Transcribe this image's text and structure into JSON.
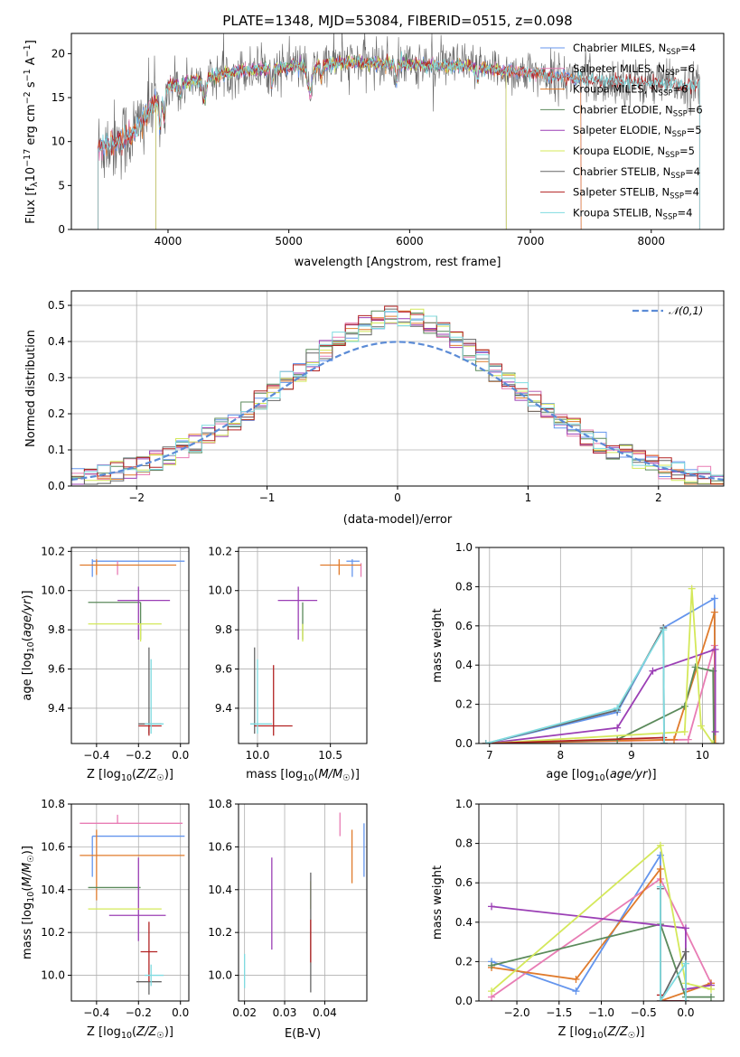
{
  "figure_title": "PLATE=1348, MJD=53084, FIBERID=0515, z=0.098",
  "colors": {
    "Chabrier MILES": "#6495ed",
    "Salpeter MILES": "#e87cb4",
    "Kroupa MILES": "#e07b2c",
    "Chabrier ELODIE": "#5b8a5b",
    "Salpeter ELODIE": "#9b3fb5",
    "Kroupa ELODIE": "#d4e85a",
    "Chabrier STELIB": "#666666",
    "Salpeter STELIB": "#b22222",
    "Kroupa STELIB": "#7fdbe0"
  },
  "chart_data": [
    {
      "id": "spectrum",
      "type": "line",
      "title": "PLATE=1348, MJD=53084, FIBERID=0515, z=0.098",
      "xlabel": "wavelength [Angstrom, rest frame]",
      "ylabel": "Flux [f_λ 10^-17 erg cm^-2 s^-1 A^-1]",
      "xlim": [
        3200,
        8600
      ],
      "ylim": [
        0,
        22.3
      ],
      "xticks": [
        4000,
        5000,
        6000,
        7000,
        8000
      ],
      "yticks": [
        0,
        5,
        10,
        15,
        20
      ],
      "grid": false,
      "legend_position": "right",
      "series": [
        {
          "name": "Chabrier MILES",
          "nssp": "4",
          "range": [
            3420,
            7420
          ]
        },
        {
          "name": "Salpeter MILES",
          "nssp": "6",
          "range": [
            3420,
            7420
          ]
        },
        {
          "name": "Kroupa MILES",
          "nssp": "6",
          "range": [
            3420,
            7420
          ]
        },
        {
          "name": "Chabrier ELODIE",
          "nssp": "6",
          "range": [
            3900,
            6800
          ]
        },
        {
          "name": "Salpeter ELODIE",
          "nssp": "5",
          "range": [
            3900,
            6800
          ]
        },
        {
          "name": "Kroupa ELODIE",
          "nssp": "5",
          "range": [
            3900,
            6800
          ]
        },
        {
          "name": "Chabrier STELIB",
          "nssp": "4",
          "range": [
            3420,
            8400
          ]
        },
        {
          "name": "Salpeter STELIB",
          "nssp": "4",
          "range": [
            3420,
            8400
          ]
        },
        {
          "name": "Kroupa STELIB",
          "nssp": "4",
          "range": [
            3420,
            8400
          ]
        }
      ]
    },
    {
      "id": "residuals",
      "type": "histogram",
      "xlabel": "(data-model)/error",
      "ylabel": "Normed distribution",
      "xlim": [
        -2.5,
        2.5
      ],
      "ylim": [
        0,
        0.54
      ],
      "xticks": [
        -2,
        -1,
        0,
        1,
        2
      ],
      "yticks": [
        0.0,
        0.1,
        0.2,
        0.3,
        0.4,
        0.5
      ],
      "grid": true,
      "legend_position": "top-right",
      "reference": {
        "name": "𝒩(0,1)",
        "mean": 0,
        "sigma": 1
      }
    },
    {
      "id": "age-z",
      "type": "errorbar",
      "xlabel": "Z [log10(Z/Z☉)]",
      "ylabel": "age  [log10(age/yr)]",
      "xlim": [
        -0.52,
        0.04
      ],
      "ylim": [
        9.22,
        10.22
      ],
      "xticks": [
        -0.4,
        -0.2,
        0.0
      ],
      "yticks": [
        9.4,
        9.6,
        9.8,
        10.0,
        10.2
      ],
      "grid": true,
      "points": [
        {
          "name": "Chabrier MILES",
          "x": -0.42,
          "xerr": [
            0.0,
            0.44
          ],
          "y": 10.15,
          "yerr": [
            0.08,
            0.01
          ]
        },
        {
          "name": "Salpeter MILES",
          "x": -0.3,
          "xerr": [
            0.0,
            0.0
          ],
          "y": 10.15,
          "yerr": [
            0.07,
            0.0
          ]
        },
        {
          "name": "Kroupa MILES",
          "x": -0.4,
          "xerr": [
            0.08,
            0.38
          ],
          "y": 10.13,
          "yerr": [
            0.05,
            0.03
          ]
        },
        {
          "name": "Chabrier ELODIE",
          "x": -0.19,
          "xerr": [
            0.25,
            0.0
          ],
          "y": 9.94,
          "yerr": [
            0.19,
            0.0
          ]
        },
        {
          "name": "Salpeter ELODIE",
          "x": -0.2,
          "xerr": [
            0.1,
            0.15
          ],
          "y": 9.95,
          "yerr": [
            0.2,
            0.07
          ]
        },
        {
          "name": "Kroupa ELODIE",
          "x": -0.19,
          "xerr": [
            0.25,
            0.1
          ],
          "y": 9.83,
          "yerr": [
            0.09,
            0.0
          ]
        },
        {
          "name": "Chabrier STELIB",
          "x": -0.15,
          "xerr": [
            0.05,
            0.06
          ],
          "y": 9.32,
          "yerr": [
            0.05,
            0.39
          ]
        },
        {
          "name": "Salpeter STELIB",
          "x": -0.15,
          "xerr": [
            0.05,
            0.06
          ],
          "y": 9.31,
          "yerr": [
            0.05,
            0.0
          ]
        },
        {
          "name": "Kroupa STELIB",
          "x": -0.14,
          "xerr": [
            0.03,
            0.06
          ],
          "y": 9.32,
          "yerr": [
            0.05,
            0.33
          ]
        }
      ]
    },
    {
      "id": "age-mass",
      "type": "errorbar",
      "xlabel": "mass [log10(M/M☉)]",
      "xlim": [
        9.87,
        10.75
      ],
      "ylim": [
        9.22,
        10.22
      ],
      "xticks": [
        10.0,
        10.5
      ],
      "yticks": [
        9.4,
        9.6,
        9.8,
        10.0,
        10.2
      ],
      "grid": true,
      "points": [
        {
          "name": "Chabrier MILES",
          "x": 10.65,
          "xerr": [
            0.04,
            0.05
          ],
          "y": 10.15,
          "yerr": [
            0.08,
            0.01
          ]
        },
        {
          "name": "Salpeter MILES",
          "x": 10.71,
          "xerr": [
            0.0,
            0.0
          ],
          "y": 10.14,
          "yerr": [
            0.07,
            0.0
          ]
        },
        {
          "name": "Kroupa MILES",
          "x": 10.56,
          "xerr": [
            0.13,
            0.15
          ],
          "y": 10.13,
          "yerr": [
            0.05,
            0.03
          ]
        },
        {
          "name": "Chabrier ELODIE",
          "x": 10.31,
          "xerr": [
            0.0,
            0.0
          ],
          "y": 9.94,
          "yerr": [
            0.19,
            0.0
          ]
        },
        {
          "name": "Salpeter ELODIE",
          "x": 10.28,
          "xerr": [
            0.14,
            0.13
          ],
          "y": 9.95,
          "yerr": [
            0.2,
            0.07
          ]
        },
        {
          "name": "Kroupa ELODIE",
          "x": 10.31,
          "xerr": [
            0.0,
            0.0
          ],
          "y": 9.83,
          "yerr": [
            0.09,
            0.0
          ]
        },
        {
          "name": "Chabrier STELIB",
          "x": 9.98,
          "xerr": [
            0.0,
            0.0
          ],
          "y": 9.32,
          "yerr": [
            0.05,
            0.39
          ]
        },
        {
          "name": "Salpeter STELIB",
          "x": 10.11,
          "xerr": [
            0.13,
            0.13
          ],
          "y": 9.31,
          "yerr": [
            0.05,
            0.31
          ]
        },
        {
          "name": "Kroupa STELIB",
          "x": 10.0,
          "xerr": [
            0.05,
            0.1
          ],
          "y": 9.32,
          "yerr": [
            0.05,
            0.33
          ]
        }
      ]
    },
    {
      "id": "weight-age",
      "type": "line",
      "xlabel": "age  [log10(age/yr)]",
      "ylabel": "mass weight",
      "xlim": [
        6.85,
        10.3
      ],
      "ylim": [
        0,
        1
      ],
      "xticks": [
        7,
        8,
        9,
        10
      ],
      "yticks": [
        0.0,
        0.2,
        0.4,
        0.6,
        0.8,
        1.0
      ],
      "grid": true,
      "series": [
        {
          "name": "Chabrier MILES",
          "x": [
            6.95,
            8.8,
            9.45,
            10.17,
            10.18
          ],
          "y": [
            0.0,
            0.16,
            0.59,
            0.74,
            0.0
          ]
        },
        {
          "name": "Salpeter MILES",
          "x": [
            6.95,
            9.8,
            10.17,
            10.18
          ],
          "y": [
            0.0,
            0.02,
            0.5,
            0.0
          ]
        },
        {
          "name": "Kroupa MILES",
          "x": [
            6.95,
            9.6,
            10.17,
            10.18
          ],
          "y": [
            0.0,
            0.02,
            0.67,
            0.0
          ]
        },
        {
          "name": "Chabrier ELODIE",
          "x": [
            6.95,
            8.8,
            9.75,
            9.9,
            10.15,
            10.16
          ],
          "y": [
            0.0,
            0.02,
            0.19,
            0.39,
            0.37,
            0.0
          ]
        },
        {
          "name": "Salpeter ELODIE",
          "x": [
            6.95,
            8.8,
            9.3,
            10.18,
            10.18
          ],
          "y": [
            0.0,
            0.08,
            0.37,
            0.48,
            0.06
          ]
        },
        {
          "name": "Kroupa ELODIE",
          "x": [
            6.95,
            9.75,
            9.85,
            9.98,
            10.15
          ],
          "y": [
            0.0,
            0.06,
            0.79,
            0.09,
            0.0
          ]
        },
        {
          "name": "Chabrier STELIB",
          "x": [
            6.95,
            8.8,
            9.45,
            9.46
          ],
          "y": [
            0.0,
            0.17,
            0.59,
            0.0
          ]
        },
        {
          "name": "Salpeter STELIB",
          "x": [
            6.95,
            9.45,
            9.46
          ],
          "y": [
            0.0,
            0.03,
            0.0
          ]
        },
        {
          "name": "Kroupa STELIB",
          "x": [
            6.95,
            8.8,
            9.45,
            9.46
          ],
          "y": [
            0.0,
            0.18,
            0.58,
            0.0
          ]
        }
      ]
    },
    {
      "id": "mass-z",
      "type": "errorbar",
      "xlabel": "Z [log10(Z/Z☉)]",
      "ylabel": "mass [log10(M/M☉)]",
      "xlim": [
        -0.52,
        0.04
      ],
      "ylim": [
        9.88,
        10.8
      ],
      "xticks": [
        -0.4,
        -0.2,
        0.0
      ],
      "yticks": [
        10.0,
        10.2,
        10.4,
        10.6,
        10.8
      ],
      "grid": true,
      "points": [
        {
          "name": "Chabrier MILES",
          "x": -0.42,
          "xerr": [
            0.0,
            0.44
          ],
          "y": 10.65,
          "yerr": [
            0.19,
            0.0
          ]
        },
        {
          "name": "Salpeter MILES",
          "x": -0.3,
          "xerr": [
            0.18,
            0.31
          ],
          "y": 10.71,
          "yerr": [
            0.0,
            0.04
          ]
        },
        {
          "name": "Kroupa MILES",
          "x": -0.4,
          "xerr": [
            0.08,
            0.42
          ],
          "y": 10.56,
          "yerr": [
            0.21,
            0.12
          ]
        },
        {
          "name": "Chabrier ELODIE",
          "x": -0.19,
          "xerr": [
            0.25,
            0.0
          ],
          "y": 10.41,
          "yerr": [
            0.0,
            0.0
          ]
        },
        {
          "name": "Salpeter ELODIE",
          "x": -0.2,
          "xerr": [
            0.14,
            0.13
          ],
          "y": 10.28,
          "yerr": [
            0.12,
            0.27
          ]
        },
        {
          "name": "Kroupa ELODIE",
          "x": -0.19,
          "xerr": [
            0.25,
            0.1
          ],
          "y": 10.31,
          "yerr": [
            0.0,
            0.0
          ]
        },
        {
          "name": "Chabrier STELIB",
          "x": -0.15,
          "xerr": [
            0.06,
            0.06
          ],
          "y": 9.97,
          "yerr": [
            0.06,
            0.0
          ]
        },
        {
          "name": "Salpeter STELIB",
          "x": -0.15,
          "xerr": [
            0.04,
            0.04
          ],
          "y": 10.11,
          "yerr": [
            0.14,
            0.14
          ]
        },
        {
          "name": "Kroupa STELIB",
          "x": -0.14,
          "xerr": [
            0.03,
            0.06
          ],
          "y": 10.0,
          "yerr": [
            0.05,
            0.05
          ]
        }
      ]
    },
    {
      "id": "mass-ebv",
      "type": "errorbar",
      "xlabel": "E(B-V)",
      "xlim": [
        0.0185,
        0.0505
      ],
      "ylim": [
        9.88,
        10.8
      ],
      "xticks": [
        0.02,
        0.03,
        0.04
      ],
      "yticks": [
        10.0,
        10.2,
        10.4,
        10.6,
        10.8
      ],
      "grid": true,
      "points": [
        {
          "name": "Chabrier MILES",
          "x": 0.0498,
          "y": 10.65,
          "yerr": [
            0.19,
            0.06
          ]
        },
        {
          "name": "Salpeter MILES",
          "x": 0.0438,
          "y": 10.71,
          "yerr": [
            0.06,
            0.05
          ]
        },
        {
          "name": "Kroupa MILES",
          "x": 0.0468,
          "y": 10.56,
          "yerr": [
            0.13,
            0.12
          ]
        },
        {
          "name": "Chabrier ELODIE",
          "x": 0.0365,
          "y": 10.41,
          "yerr": [
            0.0,
            0.0
          ]
        },
        {
          "name": "Salpeter ELODIE",
          "x": 0.0268,
          "y": 10.28,
          "yerr": [
            0.16,
            0.27
          ]
        },
        {
          "name": "Kroupa ELODIE",
          "x": 0.0365,
          "y": 10.31,
          "yerr": [
            0.0,
            0.13
          ]
        },
        {
          "name": "Chabrier STELIB",
          "x": 0.0365,
          "y": 10.2,
          "yerr": [
            0.28,
            0.28
          ]
        },
        {
          "name": "Salpeter STELIB",
          "x": 0.0365,
          "y": 10.11,
          "yerr": [
            0.05,
            0.15
          ]
        },
        {
          "name": "Kroupa STELIB",
          "x": 0.02,
          "y": 10.0,
          "yerr": [
            0.06,
            0.1
          ]
        }
      ]
    },
    {
      "id": "weight-z",
      "type": "line",
      "xlabel": "Z [log10(Z/Z☉)]",
      "ylabel": "mass weight",
      "xlim": [
        -2.45,
        0.45
      ],
      "ylim": [
        0,
        1
      ],
      "xticks": [
        -2.0,
        -1.5,
        -1.0,
        -0.5,
        0.0
      ],
      "yticks": [
        0.0,
        0.2,
        0.4,
        0.6,
        0.8,
        1.0
      ],
      "grid": true,
      "series": [
        {
          "name": "Chabrier MILES",
          "x": [
            -2.3,
            -1.3,
            -0.3,
            -0.3,
            0.0
          ],
          "y": [
            0.2,
            0.05,
            0.74,
            0.0,
            0.0
          ]
        },
        {
          "name": "Salpeter MILES",
          "x": [
            -2.3,
            -0.3,
            0.3
          ],
          "y": [
            0.02,
            0.62,
            0.09
          ]
        },
        {
          "name": "Kroupa MILES",
          "x": [
            -2.3,
            -1.3,
            -0.3,
            -0.3,
            0.3
          ],
          "y": [
            0.17,
            0.11,
            0.67,
            0.0,
            0.09
          ]
        },
        {
          "name": "Chabrier ELODIE",
          "x": [
            -2.3,
            -0.3,
            0.0,
            0.3
          ],
          "y": [
            0.18,
            0.39,
            0.02,
            0.02
          ]
        },
        {
          "name": "Salpeter ELODIE",
          "x": [
            -2.3,
            0.0,
            0.0,
            0.3
          ],
          "y": [
            0.48,
            0.37,
            0.06,
            0.08
          ]
        },
        {
          "name": "Kroupa ELODIE",
          "x": [
            -2.3,
            -0.3,
            0.0,
            0.3
          ],
          "y": [
            0.05,
            0.79,
            0.09,
            0.06
          ]
        },
        {
          "name": "Chabrier STELIB",
          "x": [
            -0.3,
            -0.3,
            0.0,
            0.0
          ],
          "y": [
            0.57,
            0.0,
            0.25,
            0.0
          ]
        },
        {
          "name": "Salpeter STELIB",
          "x": [
            -0.3,
            -0.3,
            0.0,
            0.0
          ],
          "y": [
            0.03,
            0.0,
            0.0,
            0.0
          ]
        },
        {
          "name": "Kroupa STELIB",
          "x": [
            -0.3,
            -0.3,
            0.0,
            0.0
          ],
          "y": [
            0.58,
            0.0,
            0.19,
            0.0
          ]
        }
      ]
    }
  ]
}
